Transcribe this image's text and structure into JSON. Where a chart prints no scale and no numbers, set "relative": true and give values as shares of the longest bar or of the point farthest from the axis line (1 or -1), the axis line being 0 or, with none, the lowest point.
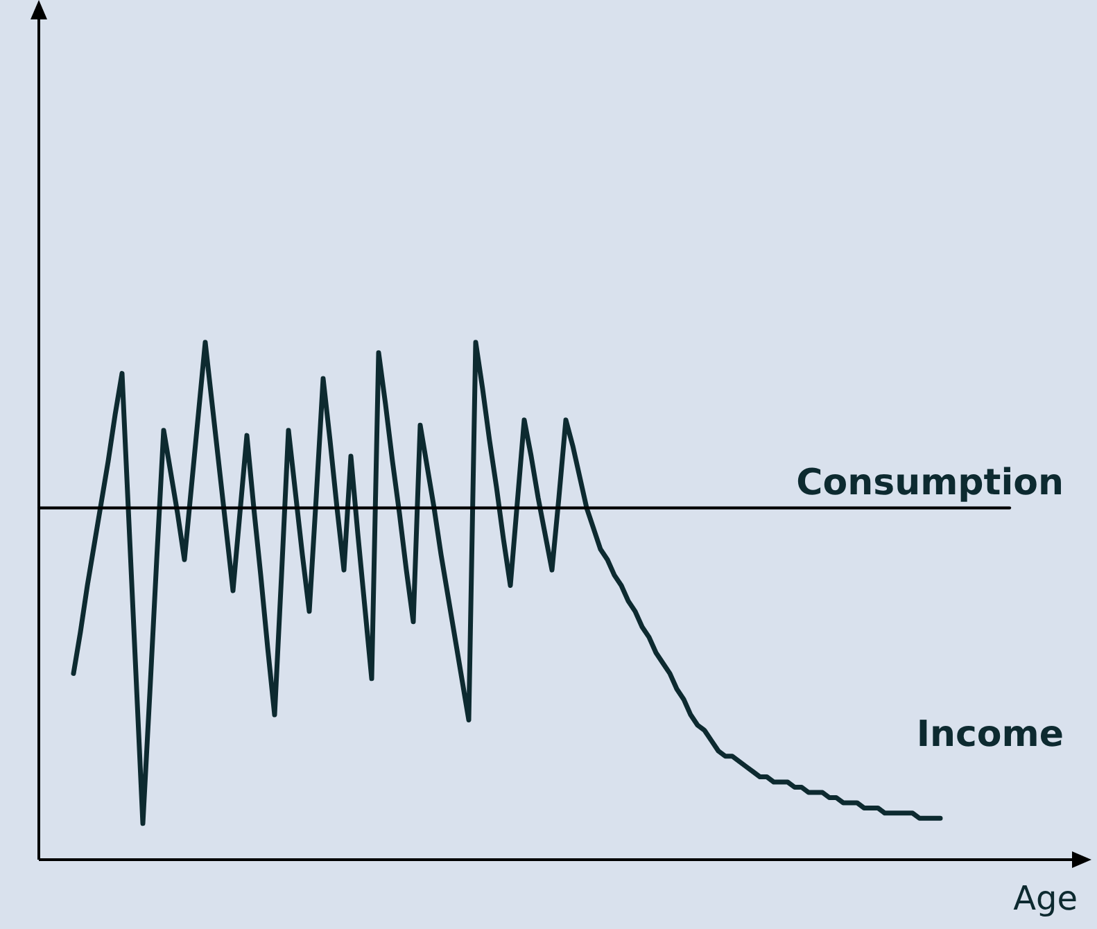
{
  "chart_data": {
    "type": "line",
    "xlabel": "Age",
    "relative": true,
    "legend": false,
    "marker": "none",
    "line_style": "solid",
    "categories": [
      null,
      null,
      null,
      null,
      null,
      null,
      null,
      null,
      null,
      null,
      null,
      null,
      null,
      null,
      null,
      null,
      null,
      null,
      null,
      null,
      null,
      null,
      null,
      null,
      null,
      null,
      null,
      null,
      null,
      null,
      null,
      null,
      null,
      null,
      null,
      null,
      null,
      null,
      null,
      null,
      null,
      null,
      null,
      null,
      null,
      null,
      null,
      null,
      null,
      null,
      null,
      null,
      null,
      null,
      null,
      null,
      null,
      null,
      null,
      null,
      null,
      null,
      null,
      null,
      null,
      null,
      null,
      null,
      null,
      null,
      null,
      null,
      null,
      null,
      null,
      null,
      null,
      null,
      null,
      null,
      null,
      null,
      null,
      null,
      null,
      null,
      null,
      null,
      null,
      null,
      null,
      null,
      null,
      null,
      null,
      null,
      null,
      null,
      null,
      null,
      null,
      null,
      null,
      null,
      null,
      null,
      null,
      null,
      null,
      null,
      null,
      null,
      null,
      null,
      null,
      null,
      null,
      null,
      null,
      null,
      null,
      null,
      null,
      null,
      null,
      null,
      null,
      null,
      null,
      null,
      null,
      null,
      null,
      null,
      null,
      null,
      null,
      null,
      null,
      null,
      null,
      null,
      null,
      null,
      null,
      null,
      null,
      null,
      null,
      null
    ],
    "series": [
      {
        "name": "Consumption",
        "color": "#000000",
        "values": [
          0.68,
          0.68,
          0.68,
          0.68,
          0.68,
          0.68,
          0.68,
          0.68,
          0.68,
          0.68,
          0.68,
          0.68,
          0.68,
          0.68,
          0.68,
          0.68,
          0.68,
          0.68,
          0.68,
          0.68,
          0.68,
          0.68,
          0.68,
          0.68,
          0.68,
          0.68,
          0.68,
          0.68,
          0.68,
          0.68,
          0.68,
          0.68,
          0.68,
          0.68,
          0.68,
          0.68,
          0.68,
          0.68,
          0.68,
          0.68,
          0.68,
          0.68,
          0.68,
          0.68,
          0.68,
          0.68,
          0.68,
          0.68,
          0.68,
          0.68,
          0.68,
          0.68,
          0.68,
          0.68,
          0.68,
          0.68,
          0.68,
          0.68,
          0.68,
          0.68,
          0.68,
          0.68,
          0.68,
          0.68,
          0.68,
          0.68,
          0.68,
          0.68,
          0.68,
          0.68,
          0.68,
          0.68,
          0.68,
          0.68,
          0.68,
          0.68,
          0.68,
          0.68,
          0.68,
          0.68,
          0.68,
          0.68,
          0.68,
          0.68,
          0.68,
          0.68,
          0.68,
          0.68,
          0.68,
          0.68,
          0.68,
          0.68,
          0.68,
          0.68,
          0.68,
          0.68,
          0.68,
          0.68,
          0.68,
          0.68,
          0.68,
          0.68,
          0.68,
          0.68,
          0.68,
          0.68,
          0.68,
          0.68,
          0.68,
          0.68,
          0.68,
          0.68,
          0.68,
          0.68,
          0.68,
          0.68,
          0.68,
          0.68,
          0.68,
          0.68,
          0.68,
          0.68,
          0.68,
          0.68,
          0.68,
          0.68,
          0.68,
          0.68,
          0.68,
          0.68,
          0.68,
          0.68,
          0.68,
          0.68,
          0.68,
          0.68,
          0.68,
          0.68,
          0.68,
          0.68,
          0.68,
          null,
          null,
          null,
          null,
          null,
          null,
          null,
          null,
          null
        ]
      },
      {
        "name": "Income",
        "color": "#0d2a30",
        "values": [
          null,
          null,
          null,
          null,
          null,
          0.36,
          0.44,
          0.53,
          0.61,
          0.69,
          0.77,
          0.86,
          0.94,
          0.65,
          0.36,
          0.07,
          0.32,
          0.58,
          0.83,
          0.75,
          0.67,
          0.58,
          0.72,
          0.86,
          1.0,
          0.88,
          0.76,
          0.64,
          0.52,
          0.67,
          0.82,
          0.68,
          0.55,
          0.41,
          0.28,
          0.55,
          0.83,
          0.71,
          0.59,
          0.48,
          0.7,
          0.93,
          0.81,
          0.68,
          0.56,
          0.78,
          0.63,
          0.49,
          0.35,
          0.98,
          0.88,
          0.77,
          0.67,
          0.56,
          0.46,
          0.84,
          0.76,
          0.68,
          0.59,
          0.51,
          0.43,
          0.35,
          0.27,
          1.0,
          0.91,
          0.81,
          0.72,
          0.62,
          0.53,
          0.69,
          0.85,
          0.78,
          0.7,
          0.63,
          0.56,
          0.7,
          0.85,
          0.8,
          0.74,
          0.68,
          0.64,
          0.6,
          0.58,
          0.55,
          0.53,
          0.5,
          0.48,
          0.45,
          0.43,
          0.4,
          0.38,
          0.36,
          0.33,
          0.31,
          0.28,
          0.26,
          0.25,
          0.23,
          0.21,
          0.2,
          0.2,
          0.19,
          0.18,
          0.17,
          0.16,
          0.16,
          0.15,
          0.15,
          0.15,
          0.14,
          0.14,
          0.13,
          0.13,
          0.13,
          0.12,
          0.12,
          0.11,
          0.11,
          0.11,
          0.1,
          0.1,
          0.1,
          0.09,
          0.09,
          0.09,
          0.09,
          0.09,
          0.08,
          0.08,
          0.08,
          0.08,
          null,
          null,
          null,
          null,
          null,
          null,
          null,
          null,
          null,
          null,
          null,
          null,
          null,
          null,
          null,
          null,
          null,
          null,
          null
        ]
      }
    ]
  }
}
